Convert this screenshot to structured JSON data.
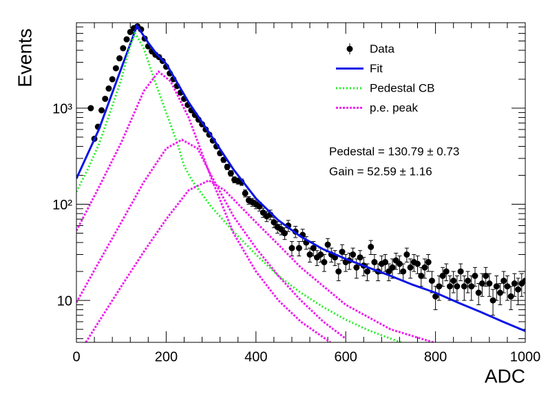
{
  "chart_data": {
    "type": "scatter",
    "xlabel": "ADC",
    "ylabel": "Events",
    "log_y": true,
    "xlim": [
      0,
      1000
    ],
    "ylim": [
      3.66,
      7740
    ],
    "xticks": [
      0,
      200,
      400,
      600,
      800,
      1000
    ],
    "xminorticks": [
      40,
      80,
      120,
      160,
      240,
      280,
      320,
      360,
      440,
      480,
      520,
      560,
      640,
      680,
      720,
      760,
      840,
      880,
      920,
      960
    ],
    "yticks": [
      10,
      {
        "value": 100,
        "label": "10²"
      },
      {
        "value": 1000,
        "label": "10³"
      }
    ],
    "yminorticks": [
      4,
      5,
      6,
      7,
      8,
      9,
      20,
      30,
      40,
      50,
      60,
      70,
      80,
      90,
      200,
      300,
      400,
      500,
      600,
      700,
      800,
      900,
      2000,
      3000,
      4000,
      5000,
      6000,
      7000
    ],
    "legend": "top-right",
    "annotations": [
      "Pedestal = 130.79 ± 0.73",
      "Gain = 52.59 ± 1.16"
    ],
    "series": [
      {
        "name": "Data",
        "kind": "points",
        "color": "#000000",
        "x": [
          32,
          40,
          48,
          56,
          64,
          72,
          80,
          88,
          96,
          104,
          112,
          120,
          128,
          136,
          144,
          152,
          160,
          168,
          176,
          184,
          192,
          200,
          208,
          216,
          224,
          232,
          240,
          248,
          256,
          264,
          272,
          280,
          288,
          296,
          304,
          312,
          320,
          328,
          336,
          344,
          352,
          360,
          368,
          376,
          384,
          392,
          400,
          408,
          416,
          424,
          432,
          440,
          448,
          456,
          464,
          472,
          480,
          488,
          496,
          504,
          512,
          520,
          528,
          536,
          544,
          552,
          560,
          568,
          576,
          584,
          592,
          600,
          608,
          616,
          624,
          632,
          640,
          648,
          656,
          664,
          672,
          680,
          688,
          696,
          704,
          712,
          720,
          728,
          736,
          744,
          752,
          760,
          768,
          776,
          784,
          792,
          800,
          808,
          816,
          824,
          832,
          840,
          848,
          856,
          864,
          872,
          880,
          888,
          896,
          904,
          912,
          920,
          928,
          936,
          944,
          952,
          960,
          968,
          976,
          984,
          992,
          1000
        ],
        "values": [
          1000,
          480,
          640,
          950,
          1250,
          1600,
          2000,
          2600,
          3300,
          4200,
          5200,
          6200,
          6800,
          7100,
          6600,
          5300,
          4400,
          3900,
          3600,
          3400,
          3100,
          2700,
          2300,
          2000,
          1700,
          1450,
          1250,
          1080,
          950,
          850,
          760,
          680,
          600,
          530,
          460,
          400,
          340,
          290,
          245,
          210,
          180,
          175,
          170,
          130,
          110,
          105,
          100,
          95,
          82,
          75,
          78,
          65,
          58,
          55,
          50,
          60,
          35,
          52,
          35,
          48,
          40,
          30,
          35,
          28,
          30,
          25,
          38,
          30,
          28,
          20,
          32,
          25,
          26,
          30,
          22,
          28,
          23,
          20,
          36,
          25,
          20,
          24,
          25,
          20,
          22,
          26,
          24,
          20,
          30,
          22,
          25,
          24,
          18,
          22,
          25,
          16,
          11,
          14,
          18,
          20,
          14,
          16,
          14,
          20,
          14,
          16,
          14,
          18,
          12,
          15,
          18,
          15,
          10,
          14,
          12,
          16,
          14,
          11,
          15,
          13,
          15,
          16
        ],
        "errors": [
          32,
          22,
          25,
          31,
          35,
          40,
          45,
          51,
          57,
          65,
          72,
          79,
          82,
          84,
          81,
          73,
          66,
          62,
          60,
          58,
          56,
          52,
          48,
          45,
          41,
          38,
          35,
          33,
          31,
          29,
          28,
          26,
          24,
          23,
          21,
          20,
          18,
          17,
          16,
          14,
          13,
          13,
          13,
          11,
          10,
          10,
          10,
          10,
          9,
          9,
          9,
          8,
          8,
          7,
          7,
          8,
          6,
          7,
          6,
          7,
          6,
          5,
          6,
          5,
          5,
          5,
          6,
          5,
          5,
          4,
          6,
          5,
          5,
          5,
          5,
          5,
          5,
          4,
          6,
          5,
          4,
          5,
          5,
          4,
          5,
          5,
          5,
          4,
          5,
          5,
          5,
          5,
          4,
          5,
          5,
          4,
          3,
          4,
          4,
          4,
          4,
          4,
          4,
          4,
          4,
          4,
          4,
          4,
          3,
          4,
          4,
          4,
          3,
          4,
          3,
          4,
          4,
          3,
          4,
          4,
          4,
          4
        ]
      },
      {
        "name": "Fit",
        "kind": "solid",
        "color": "#0a14e6",
        "curves": [
          {
            "x": [
              0,
              50,
              100,
              135,
              160,
              180,
              200,
              250,
              300,
              350,
              400,
              450,
              500,
              550,
              600,
              650,
              700,
              750,
              800,
              850,
              900,
              950,
              1000
            ],
            "values": [
              185,
              600,
              2600,
              7200,
              4800,
              3600,
              2900,
              1150,
              520,
              230,
              115,
              68,
              46,
              34,
              27,
              22,
              18,
              14.5,
              12,
              9.5,
              7.6,
              6,
              4.8
            ]
          }
        ]
      },
      {
        "name": "Pedestal CB",
        "kind": "dotted",
        "color": "#22ee22",
        "curves": [
          {
            "x": [
              0,
              25,
              50,
              75,
              100,
              120,
              131,
              150,
              175,
              200,
              225,
              240,
              260,
              300,
              350,
              400,
              450,
              500,
              550,
              600,
              650,
              700,
              750
            ],
            "values": [
              135,
              230,
              420,
              900,
              2000,
              4500,
              6000,
              4200,
              1900,
              900,
              430,
              250,
              170,
              95,
              52,
              30,
              18,
              12,
              8.5,
              6.3,
              4.9,
              4,
              3.3
            ]
          }
        ]
      },
      {
        "name": "p.e. peak",
        "kind": "dashed",
        "color": "#ee22ee",
        "curves": [
          {
            "x": [
              0,
              50,
              100,
              150,
              183,
              210,
              250,
              300,
              350,
              400,
              450,
              500,
              566
            ],
            "values": [
              53,
              150,
              440,
              1500,
              2400,
              1900,
              800,
              190,
              50,
              20,
              10,
              6,
              3.66
            ]
          },
          {
            "x": [
              0,
              50,
              100,
              150,
              200,
              235,
              270,
              300,
              350,
              400,
              450,
              500,
              550,
              600
            ],
            "values": [
              9.5,
              25,
              65,
              170,
              380,
              470,
              380,
              200,
              75,
              35,
              18,
              10,
              6,
              4
            ]
          },
          {
            "x": [
              21,
              50,
              100,
              150,
              200,
              250,
              295,
              330,
              400,
              450,
              500,
              600,
              700,
              800
            ],
            "values": [
              3.66,
              6,
              14,
              32,
              70,
              140,
              177,
              140,
              65,
              38,
              22,
              9,
              5,
              3.6
            ]
          }
        ]
      }
    ]
  }
}
